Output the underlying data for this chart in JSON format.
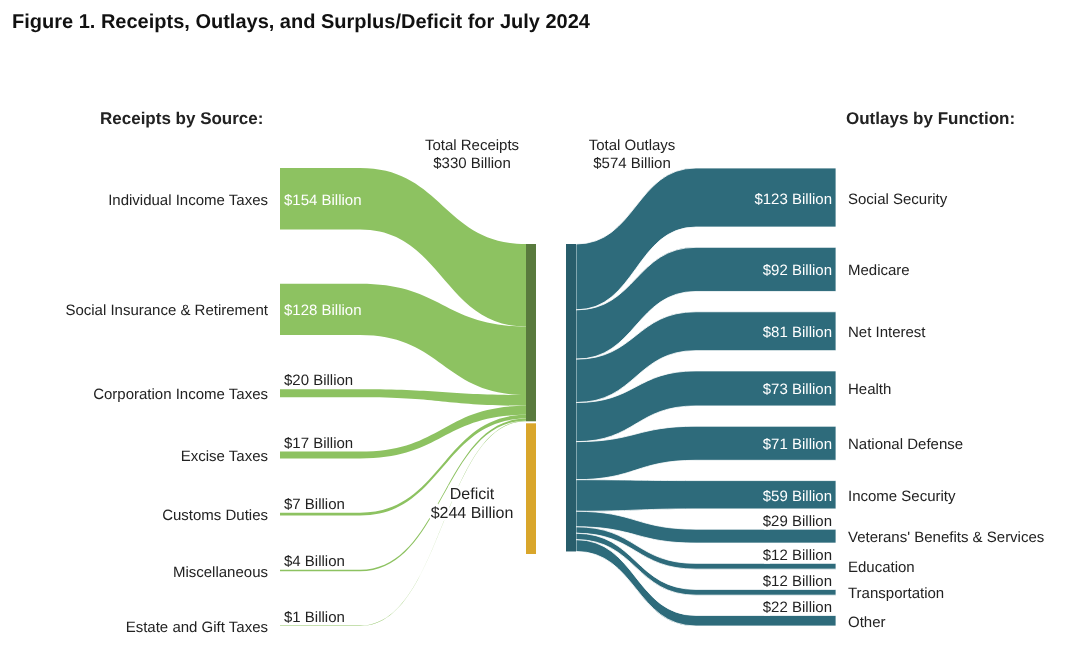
{
  "chart_data": {
    "type": "other",
    "title": "Figure 1. Receipts, Outlays, and Surplus/Deficit for July 2024",
    "categories": [
      "Individual Income Taxes",
      "Social Insurance & Retirement",
      "Corporation Income Taxes",
      "Excise Taxes",
      "Customs Duties",
      "Miscellaneous",
      "Estate and Gift Taxes",
      "Deficit",
      "Social Security",
      "Medicare",
      "Net Interest",
      "Health",
      "National Defense",
      "Income Security",
      "Veterans' Benefits & Services",
      "Education",
      "Transportation",
      "Other"
    ],
    "series": [
      {
        "name": "Receipts by Source:",
        "color": "#8dc261",
        "values": [
          154,
          128,
          20,
          17,
          7,
          4,
          1,
          null,
          null,
          null,
          null,
          null,
          null,
          null,
          null,
          null,
          null,
          null
        ],
        "value_labels": [
          "$154 Billion",
          "$128 Billion",
          "$20 Billion",
          "$17 Billion",
          "$7 Billion",
          "$4 Billion",
          "$1 Billion",
          null,
          null,
          null,
          null,
          null,
          null,
          null,
          null,
          null,
          null,
          null
        ]
      },
      {
        "color": "#d9a62b",
        "values": [
          null,
          null,
          null,
          null,
          null,
          null,
          null,
          244,
          null,
          null,
          null,
          null,
          null,
          null,
          null,
          null,
          null,
          null
        ],
        "value_labels": [
          null,
          null,
          null,
          null,
          null,
          null,
          null,
          "$244 Billion",
          null,
          null,
          null,
          null,
          null,
          null,
          null,
          null,
          null,
          null
        ]
      },
      {
        "name": "Outlays by Function:",
        "color": "#2e6b7b",
        "values": [
          null,
          null,
          null,
          null,
          null,
          null,
          null,
          null,
          123,
          92,
          81,
          73,
          71,
          59,
          29,
          12,
          12,
          22
        ],
        "value_labels": [
          null,
          null,
          null,
          null,
          null,
          null,
          null,
          null,
          "$123 Billion",
          "$92 Billion",
          "$81 Billion",
          "$73 Billion",
          "$71 Billion",
          "$59 Billion",
          "$29 Billion",
          "$12 Billion",
          "$12 Billion",
          "$22 Billion"
        ]
      }
    ],
    "annotations": [
      "Total Receipts\n$330 Billion",
      "Total Outlays\n$574 Billion"
    ]
  }
}
